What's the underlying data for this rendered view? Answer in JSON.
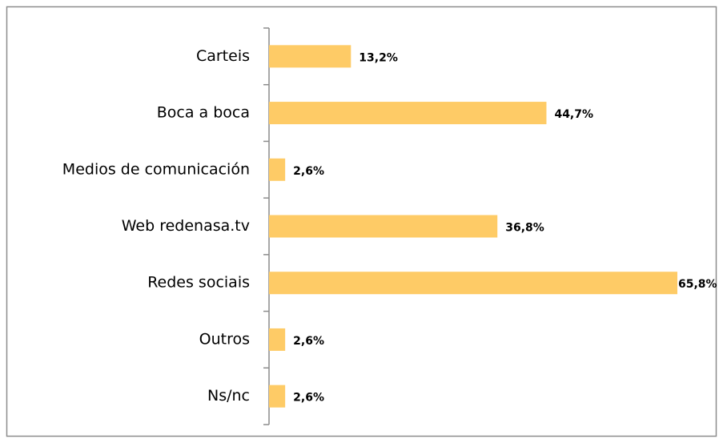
{
  "chart_data": {
    "type": "bar",
    "orientation": "horizontal",
    "categories": [
      "Carteis",
      "Boca a boca",
      "Medios de comunicación",
      "Web redenasa.tv",
      "Redes sociais",
      "Outros",
      "Ns/nc"
    ],
    "values": [
      13.2,
      44.7,
      2.6,
      36.8,
      65.8,
      2.6,
      2.6
    ],
    "value_labels": [
      "13,2%",
      "44,7%",
      "2,6%",
      "36,8%",
      "65,8%",
      "2,6%",
      "2,6%"
    ],
    "color": "#fecb66"
  }
}
